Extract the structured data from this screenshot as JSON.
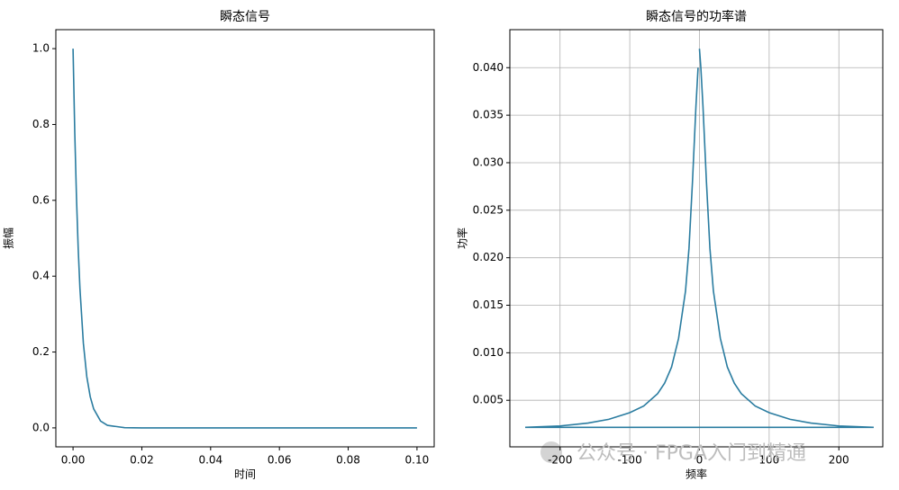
{
  "chart_data": [
    {
      "type": "line",
      "title": "瞬态信号",
      "xlabel": "时间",
      "ylabel": "振幅",
      "x": [
        0,
        0.0005,
        0.001,
        0.0015,
        0.002,
        0.003,
        0.004,
        0.005,
        0.006,
        0.008,
        0.01,
        0.015,
        0.02,
        0.1
      ],
      "series": [
        {
          "name": "瞬态信号",
          "color": "#2a7ca0",
          "values": [
            1,
            0.779,
            0.607,
            0.472,
            0.368,
            0.223,
            0.135,
            0.082,
            0.05,
            0.018,
            0.0067,
            0.0006,
            0,
            0
          ]
        }
      ],
      "xlim": [
        -0.005,
        0.105
      ],
      "xticks": [
        {
          "value": 0,
          "label": "0.00"
        },
        {
          "value": 0.02,
          "label": "0.02"
        },
        {
          "value": 0.04,
          "label": "0.04"
        },
        {
          "value": 0.06,
          "label": "0.06"
        },
        {
          "value": 0.08,
          "label": "0.08"
        },
        {
          "value": 0.1,
          "label": "0.10"
        }
      ],
      "ylim": [
        -0.05,
        1.05
      ],
      "yticks": [
        {
          "value": 0,
          "label": "0.0"
        },
        0.2,
        0.4,
        0.6,
        0.8,
        {
          "value": 1,
          "label": "1.0"
        }
      ],
      "grid": false
    },
    {
      "type": "line",
      "title": "瞬态信号的功率谱",
      "xlabel": "频率",
      "ylabel": "功率",
      "x": [
        0,
        2,
        5,
        10,
        15,
        20,
        30,
        40,
        50,
        60,
        80,
        100,
        130,
        160,
        200,
        250,
        -250,
        -200,
        -160,
        -130,
        -100,
        -80,
        -60,
        -50,
        -40,
        -30,
        -20,
        -15,
        -10,
        -5,
        -2
      ],
      "series": [
        {
          "name": "功率谱",
          "color": "#2a7ca0",
          "values": [
            0.042,
            0.04,
            0.036,
            0.028,
            0.021,
            0.0165,
            0.0115,
            0.0085,
            0.0068,
            0.0057,
            0.0044,
            0.0037,
            0.003,
            0.0026,
            0.0023,
            0.00215,
            0.00215,
            0.0023,
            0.0026,
            0.003,
            0.0037,
            0.0044,
            0.0057,
            0.0068,
            0.0085,
            0.0115,
            0.0165,
            0.021,
            0.028,
            0.036,
            0.04
          ]
        }
      ],
      "xlim": [
        -272,
        263
      ],
      "xticks": [
        -200,
        -100,
        0,
        100,
        200
      ],
      "ylim": [
        0.0001,
        0.044
      ],
      "yticks": [
        0.005,
        {
          "value": 0.01,
          "label": "0.010"
        },
        0.015,
        {
          "value": 0.02,
          "label": "0.020"
        },
        0.025,
        {
          "value": 0.03,
          "label": "0.030"
        },
        0.035,
        {
          "value": 0.04,
          "label": "0.040"
        }
      ],
      "grid": true,
      "annotation": "公众号 · FPGA入门到精通"
    }
  ]
}
